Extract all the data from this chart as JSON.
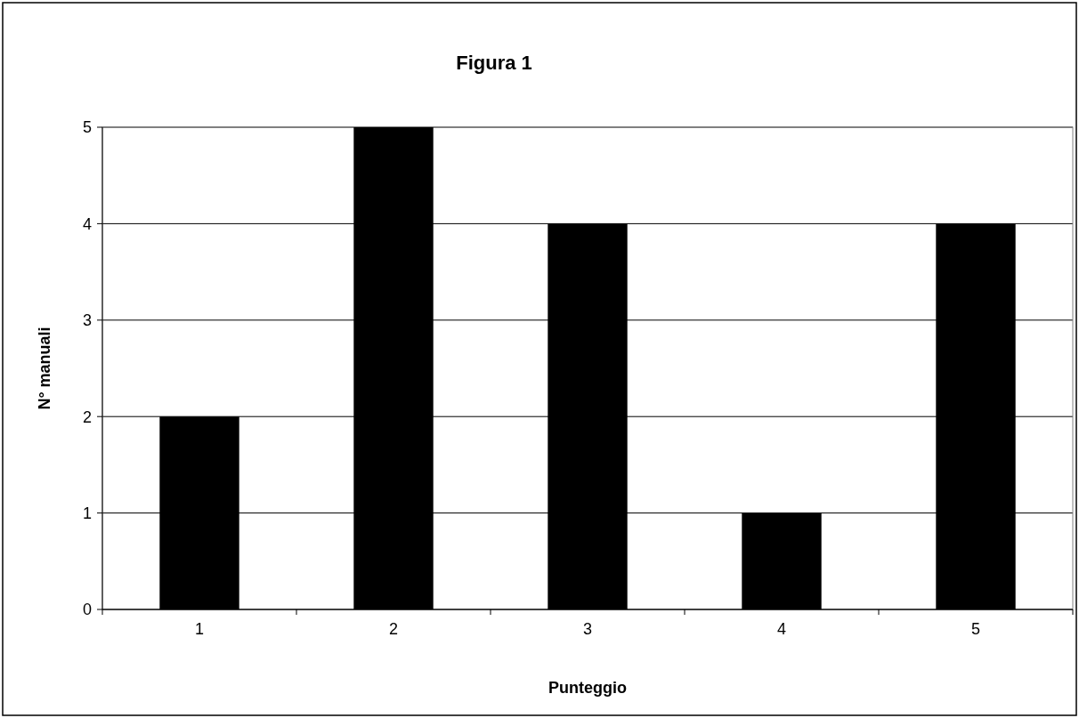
{
  "chart_data": {
    "type": "bar",
    "title": "Figura 1",
    "xlabel": "Punteggio",
    "ylabel": "N° manuali",
    "categories": [
      "1",
      "2",
      "3",
      "4",
      "5"
    ],
    "values": [
      2,
      5,
      4,
      1,
      4
    ],
    "color": "#000000",
    "ylim": [
      0,
      5
    ],
    "yticks": [
      0,
      1,
      2,
      3,
      4,
      5
    ],
    "grid": "y"
  }
}
